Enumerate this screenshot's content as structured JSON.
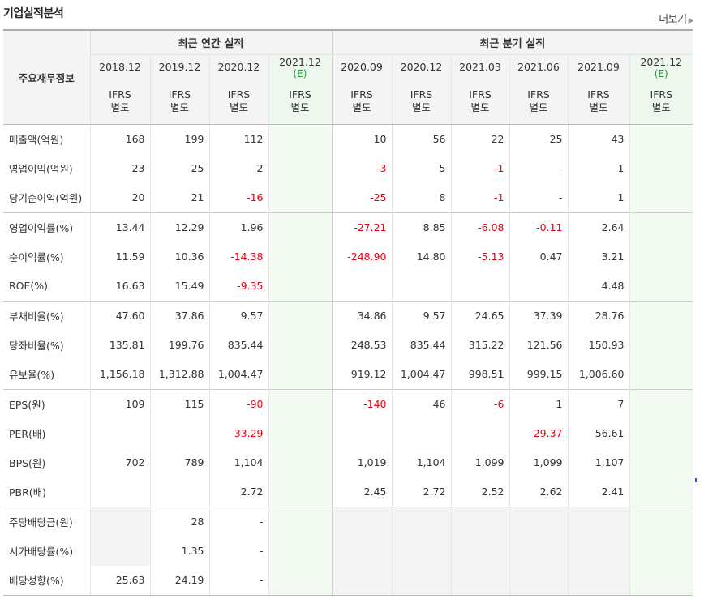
{
  "header": {
    "title": "기업실적분석",
    "more_label": "더보기"
  },
  "table": {
    "left_header": "주요재무정보",
    "groups": {
      "annual": "최근 연간 실적",
      "quarterly": "최근 분기 실적"
    },
    "periods": [
      {
        "label": "2018.12",
        "est": ""
      },
      {
        "label": "2019.12",
        "est": ""
      },
      {
        "label": "2020.12",
        "est": ""
      },
      {
        "label": "2021.12",
        "est": "(E)"
      },
      {
        "label": "2020.09",
        "est": ""
      },
      {
        "label": "2020.12",
        "est": ""
      },
      {
        "label": "2021.03",
        "est": ""
      },
      {
        "label": "2021.06",
        "est": ""
      },
      {
        "label": "2021.09",
        "est": ""
      },
      {
        "label": "2021.12",
        "est": "(E)"
      }
    ],
    "account_type": {
      "line1": "IFRS",
      "line2": "별도"
    },
    "rows": [
      {
        "label": "매출액(억원)",
        "values": [
          "168",
          "199",
          "112",
          "",
          "10",
          "56",
          "22",
          "25",
          "43",
          ""
        ]
      },
      {
        "label": "영업이익(억원)",
        "values": [
          "23",
          "25",
          "2",
          "",
          "-3",
          "5",
          "-1",
          "-",
          "1",
          ""
        ]
      },
      {
        "label": "당기순이익(억원)",
        "values": [
          "20",
          "21",
          "-16",
          "",
          "-25",
          "8",
          "-1",
          "-",
          "1",
          ""
        ]
      },
      {
        "label": "영업이익률(%)",
        "values": [
          "13.44",
          "12.29",
          "1.96",
          "",
          "-27.21",
          "8.85",
          "-6.08",
          "-0.11",
          "2.64",
          ""
        ]
      },
      {
        "label": "순이익률(%)",
        "values": [
          "11.59",
          "10.36",
          "-14.38",
          "",
          "-248.90",
          "14.80",
          "-5.13",
          "0.47",
          "3.21",
          ""
        ]
      },
      {
        "label": "ROE(%)",
        "values": [
          "16.63",
          "15.49",
          "-9.35",
          "",
          "",
          "",
          "",
          "",
          "4.48",
          ""
        ]
      },
      {
        "label": "부채비율(%)",
        "values": [
          "47.60",
          "37.86",
          "9.57",
          "",
          "34.86",
          "9.57",
          "24.65",
          "37.39",
          "28.76",
          ""
        ]
      },
      {
        "label": "당좌비율(%)",
        "values": [
          "135.81",
          "199.76",
          "835.44",
          "",
          "248.53",
          "835.44",
          "315.22",
          "121.56",
          "150.93",
          ""
        ]
      },
      {
        "label": "유보율(%)",
        "values": [
          "1,156.18",
          "1,312.88",
          "1,004.47",
          "",
          "919.12",
          "1,004.47",
          "998.51",
          "999.15",
          "1,006.60",
          ""
        ]
      },
      {
        "label": "EPS(원)",
        "values": [
          "109",
          "115",
          "-90",
          "",
          "-140",
          "46",
          "-6",
          "1",
          "7",
          ""
        ]
      },
      {
        "label": "PER(배)",
        "values": [
          "",
          "",
          "-33.29",
          "",
          "",
          "",
          "",
          "-29.37",
          "56.61",
          ""
        ]
      },
      {
        "label": "BPS(원)",
        "values": [
          "702",
          "789",
          "1,104",
          "",
          "1,019",
          "1,104",
          "1,099",
          "1,099",
          "1,107",
          ""
        ]
      },
      {
        "label": "PBR(배)",
        "values": [
          "",
          "",
          "2.72",
          "",
          "2.45",
          "2.72",
          "2.52",
          "2.62",
          "2.41",
          ""
        ]
      },
      {
        "label": "주당배당금(원)",
        "values": [
          "",
          "28",
          "-",
          "",
          "",
          "",
          "",
          "",
          "",
          ""
        ]
      },
      {
        "label": "시가배당률(%)",
        "values": [
          "",
          "1.35",
          "-",
          "",
          "",
          "",
          "",
          "",
          "",
          ""
        ]
      },
      {
        "label": "배당성향(%)",
        "values": [
          "25.63",
          "24.19",
          "-",
          "",
          "",
          "",
          "",
          "",
          "",
          ""
        ]
      }
    ]
  },
  "colors": {
    "negative": "#e60012",
    "accounting_label": "#ff6a00",
    "estimate": "#2a9a3c",
    "estimate_bg": "#f2faf2"
  }
}
